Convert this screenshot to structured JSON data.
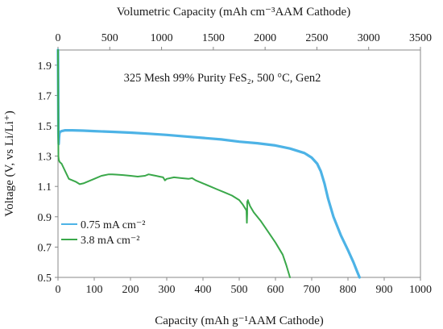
{
  "chart_data": {
    "type": "line",
    "title": "325 Mesh 99% Purity FeS₂, 500 °C, Gen2",
    "xlabel": "Capacity (mAh g⁻¹AAM Cathode)",
    "x2label": "Volumetric Capacity (mAh cm⁻³AAM Cathode)",
    "ylabel": "Voltage (V, vs Li/Li⁺)",
    "xlim": [
      0,
      1000
    ],
    "x2lim": [
      0,
      3500
    ],
    "ylim": [
      0.5,
      2.0
    ],
    "xticks": [
      "0",
      "100",
      "200",
      "300",
      "400",
      "500",
      "600",
      "700",
      "800",
      "900",
      "1000"
    ],
    "x2ticks": [
      "0",
      "500",
      "1000",
      "1500",
      "2000",
      "2500",
      "3000",
      "3500"
    ],
    "yticks": [
      "0.5",
      "0.7",
      "0.9",
      "1.1",
      "1.3",
      "1.5",
      "1.7",
      "1.9"
    ],
    "grid": false,
    "legend_position": "bottom-left",
    "series": [
      {
        "name": "0.75 mA cm⁻²",
        "color": "#4db3e6",
        "x": [
          0,
          1,
          2,
          3,
          4,
          6,
          10,
          20,
          40,
          70,
          100,
          150,
          200,
          250,
          300,
          350,
          400,
          450,
          500,
          550,
          600,
          640,
          680,
          700,
          715,
          725,
          735,
          745,
          760,
          780,
          800,
          815,
          825,
          832
        ],
        "y": [
          2.0,
          1.45,
          1.38,
          1.42,
          1.45,
          1.46,
          1.465,
          1.47,
          1.47,
          1.468,
          1.465,
          1.46,
          1.455,
          1.448,
          1.44,
          1.43,
          1.42,
          1.41,
          1.395,
          1.385,
          1.37,
          1.35,
          1.32,
          1.29,
          1.25,
          1.2,
          1.12,
          1.02,
          0.9,
          0.78,
          0.68,
          0.6,
          0.54,
          0.5
        ]
      },
      {
        "name": "3.8 mA cm⁻²",
        "color": "#3aa84a",
        "x": [
          0,
          1,
          2,
          3,
          5,
          10,
          20,
          30,
          40,
          50,
          60,
          70,
          80,
          100,
          120,
          140,
          150,
          160,
          180,
          200,
          220,
          240,
          250,
          260,
          270,
          280,
          290,
          295,
          300,
          320,
          340,
          360,
          370,
          380,
          400,
          420,
          440,
          460,
          480,
          500,
          510,
          515,
          518,
          520,
          521,
          522,
          522,
          523,
          524,
          525,
          530,
          540,
          560,
          580,
          600,
          620,
          630,
          640
        ],
        "y": [
          2.0,
          1.3,
          1.28,
          1.27,
          1.26,
          1.25,
          1.2,
          1.15,
          1.14,
          1.13,
          1.115,
          1.12,
          1.13,
          1.15,
          1.17,
          1.18,
          1.18,
          1.178,
          1.175,
          1.17,
          1.165,
          1.17,
          1.18,
          1.175,
          1.17,
          1.165,
          1.16,
          1.14,
          1.15,
          1.16,
          1.155,
          1.15,
          1.155,
          1.14,
          1.12,
          1.1,
          1.08,
          1.06,
          1.04,
          1.01,
          0.98,
          0.96,
          0.95,
          0.94,
          0.86,
          0.92,
          1.0,
          1.0,
          1.01,
          1.0,
          0.97,
          0.93,
          0.87,
          0.8,
          0.73,
          0.65,
          0.58,
          0.5
        ]
      }
    ]
  }
}
